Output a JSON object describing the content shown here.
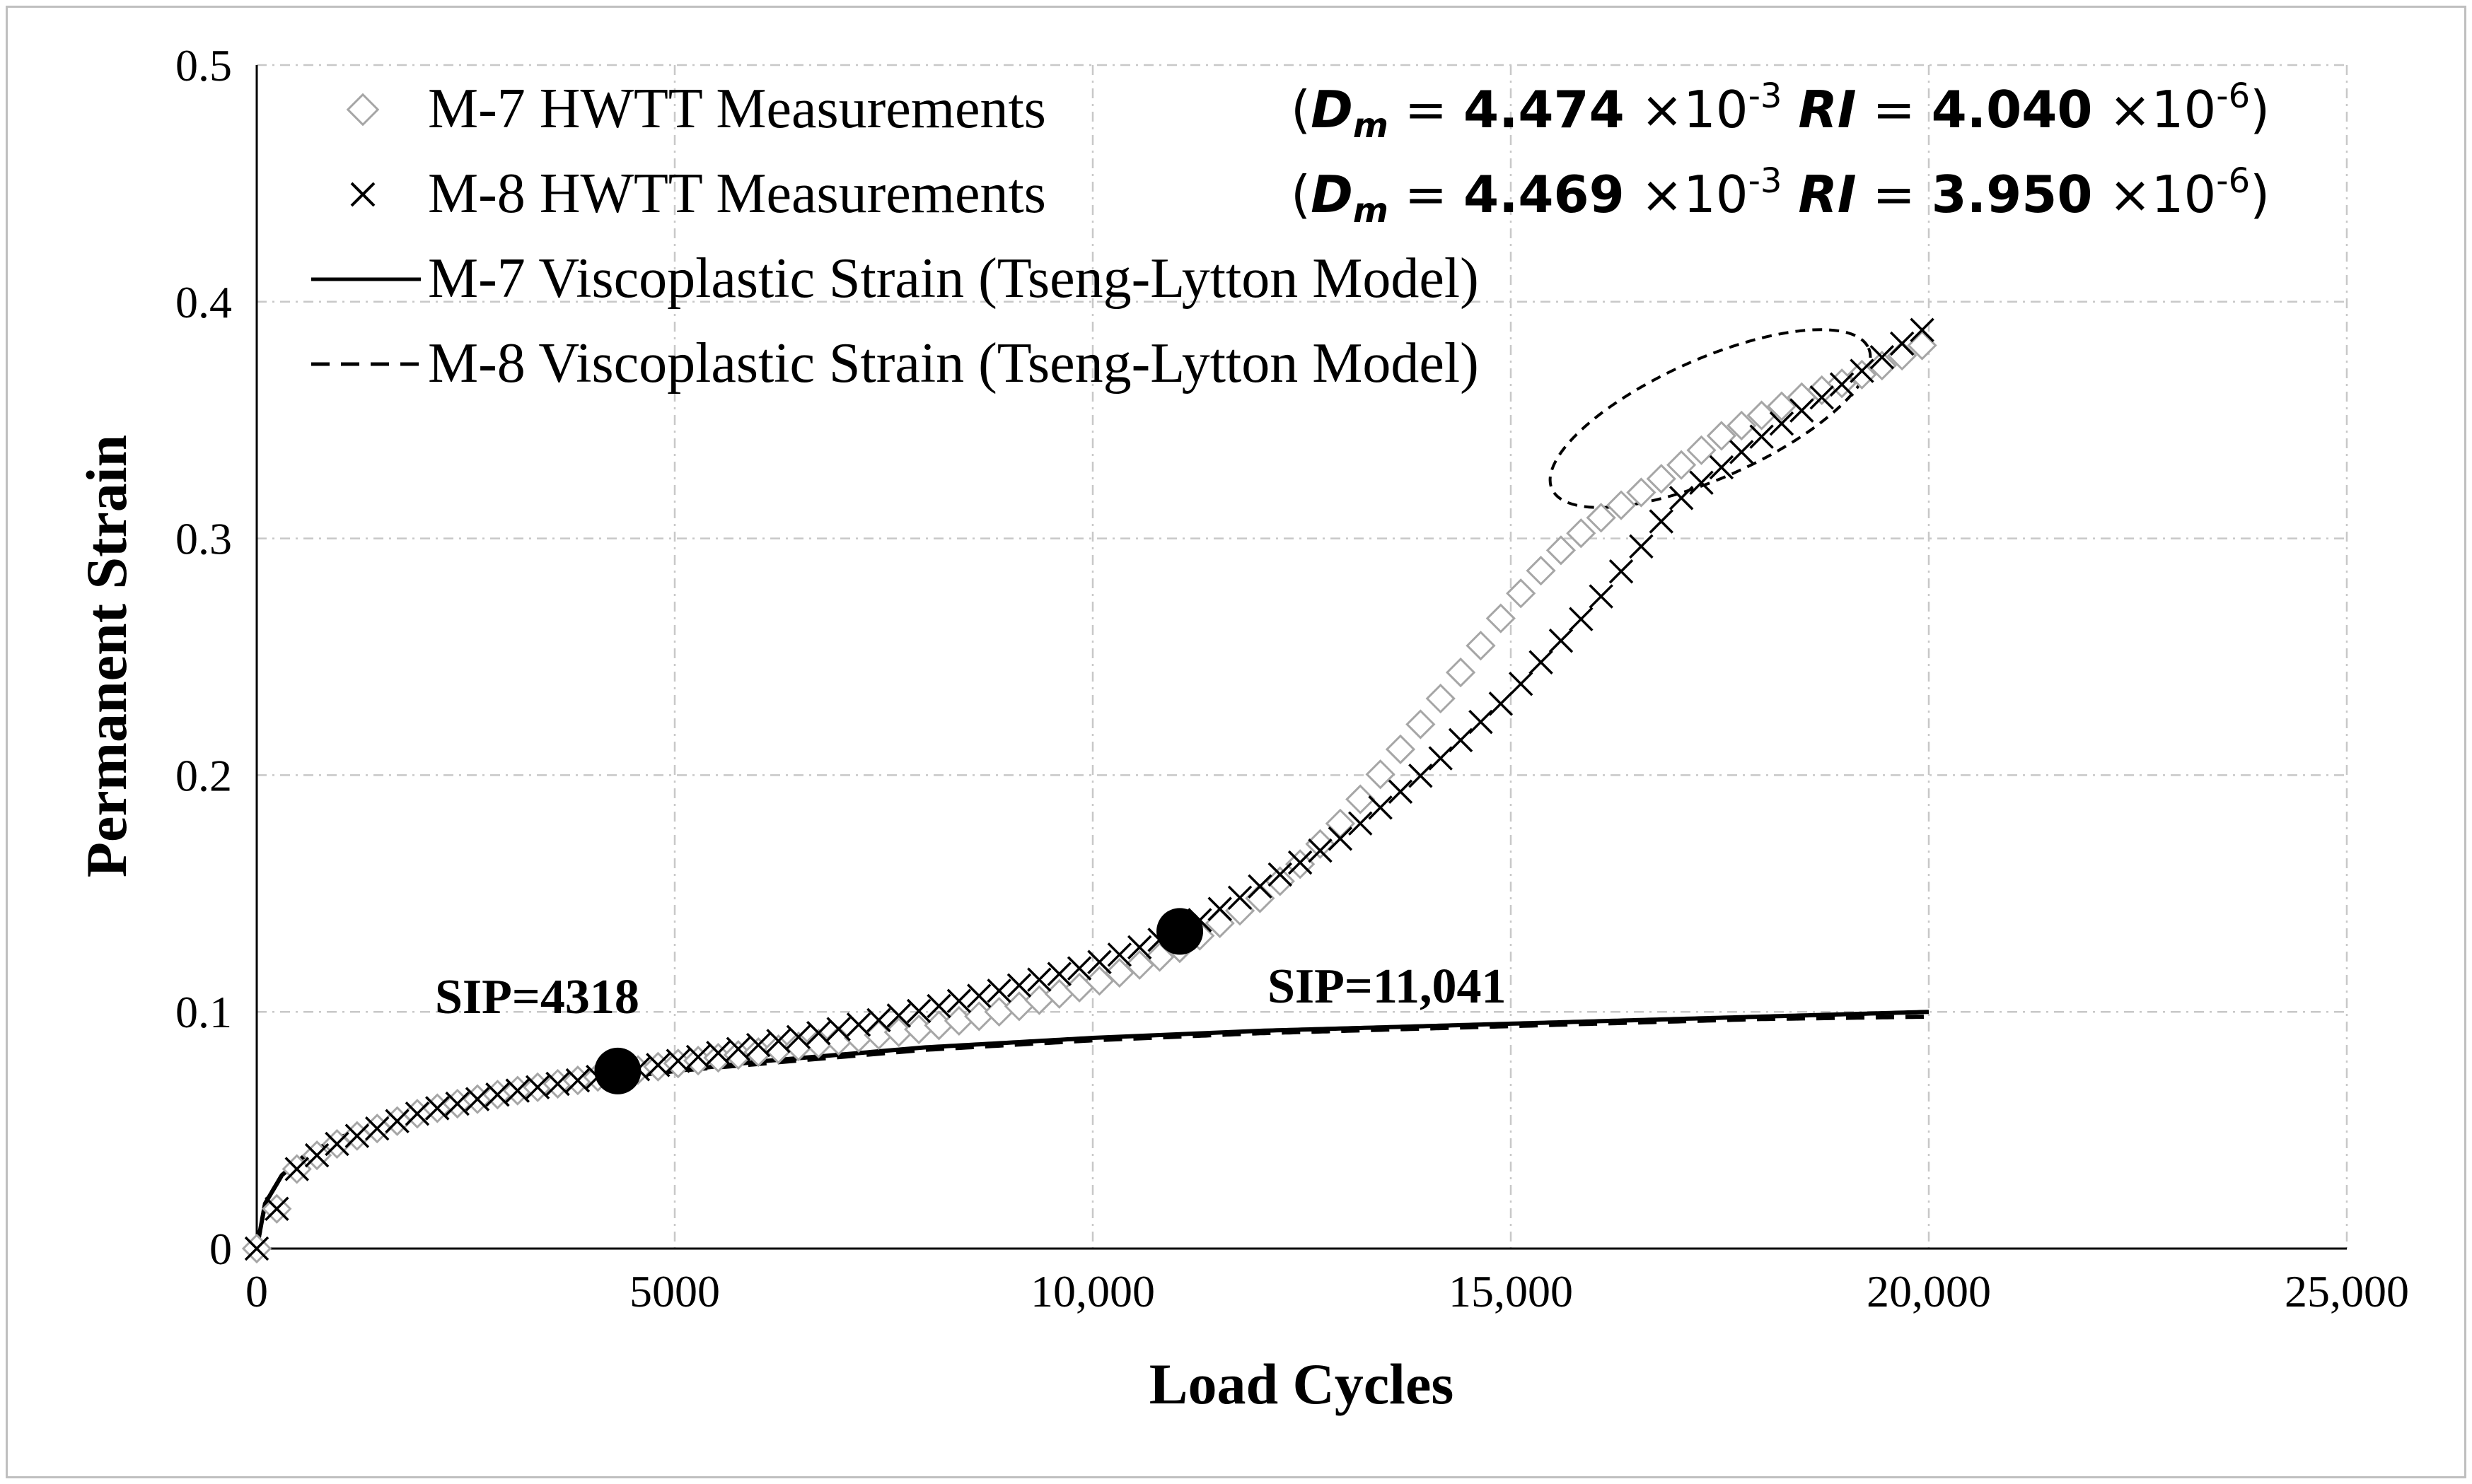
{
  "chart_data": {
    "type": "scatter",
    "title": "",
    "xlabel": "Load Cycles",
    "ylabel": "Permanent Strain",
    "xlim": [
      0,
      25000
    ],
    "ylim": [
      0,
      0.5
    ],
    "grid": true,
    "legend_position": "top-left",
    "x_ticks": [
      0,
      5000,
      10000,
      15000,
      20000,
      25000
    ],
    "x_tick_labels": [
      "0",
      "5000",
      "10,000",
      "15,000",
      "20,000",
      "25,000"
    ],
    "y_ticks": [
      0,
      0.1,
      0.2,
      0.3,
      0.4,
      0.5
    ],
    "y_tick_labels": [
      "0",
      "0.1",
      "0.2",
      "0.3",
      "0.4",
      "0.5"
    ],
    "series": [
      {
        "name": "M-7 HWTT Measurements",
        "marker": "diamond",
        "color": "#a6a6a6",
        "x": [
          0,
          500,
          1000,
          2000,
          3000,
          4000,
          4318,
          5000,
          6000,
          7000,
          8000,
          9000,
          10000,
          11000,
          12000,
          12500,
          13000,
          13500,
          14000,
          14500,
          15000,
          15500,
          16000,
          16500,
          17000,
          17500,
          18000,
          18500,
          19000,
          19500,
          20000
        ],
        "values": [
          0,
          0.035,
          0.045,
          0.058,
          0.066,
          0.072,
          0.074,
          0.078,
          0.083,
          0.088,
          0.093,
          0.101,
          0.112,
          0.126,
          0.148,
          0.163,
          0.181,
          0.203,
          0.225,
          0.248,
          0.272,
          0.292,
          0.307,
          0.318,
          0.33,
          0.343,
          0.352,
          0.36,
          0.366,
          0.374,
          0.383
        ]
      },
      {
        "name": "M-8 HWTT Measurements",
        "marker": "x",
        "color": "#000000",
        "x": [
          0,
          500,
          1000,
          2000,
          3000,
          4000,
          4318,
          5000,
          6000,
          7000,
          8000,
          9000,
          10000,
          11000,
          11041,
          12000,
          13000,
          14000,
          15000,
          16000,
          17000,
          18000,
          19000,
          20000
        ],
        "values": [
          0,
          0.035,
          0.045,
          0.058,
          0.066,
          0.072,
          0.074,
          0.079,
          0.086,
          0.093,
          0.101,
          0.11,
          0.12,
          0.133,
          0.134,
          0.153,
          0.174,
          0.202,
          0.234,
          0.272,
          0.316,
          0.343,
          0.366,
          0.39
        ]
      },
      {
        "name": "M-7 Viscoplastic Strain (Tseng-Lytton Model)",
        "line": "solid",
        "color": "#000000",
        "x": [
          0,
          100,
          300,
          600,
          1000,
          1500,
          2000,
          3000,
          4000,
          5000,
          6000,
          8000,
          10000,
          12000,
          14000,
          16000,
          18000,
          20000
        ],
        "values": [
          0,
          0.019,
          0.031,
          0.04,
          0.047,
          0.053,
          0.058,
          0.065,
          0.071,
          0.075,
          0.079,
          0.085,
          0.089,
          0.092,
          0.094,
          0.096,
          0.098,
          0.1
        ]
      },
      {
        "name": "M-8 Viscoplastic Strain (Tseng-Lytton Model)",
        "line": "dashed",
        "color": "#000000",
        "x": [
          0,
          100,
          300,
          600,
          1000,
          1500,
          2000,
          3000,
          4000,
          5000,
          6000,
          8000,
          10000,
          12000,
          14000,
          16000,
          18000,
          20000
        ],
        "values": [
          0,
          0.019,
          0.031,
          0.04,
          0.047,
          0.053,
          0.058,
          0.065,
          0.071,
          0.075,
          0.078,
          0.084,
          0.088,
          0.091,
          0.093,
          0.095,
          0.097,
          0.098
        ]
      }
    ],
    "sip_points": [
      {
        "label": "SIP=4318",
        "x": 4318,
        "y": 0.075
      },
      {
        "label": "SIP=11,041",
        "x": 11041,
        "y": 0.134
      }
    ],
    "parameters": [
      {
        "series": "M-7",
        "open": "(",
        "dm_sym": "D",
        "dm_sub": "m",
        "eq": "=",
        "dm_val": "4.474",
        "times": "×10",
        "dm_exp": "-3",
        "ri_sym": "RI",
        "ri_val": "4.040",
        "ri_exp": "-6",
        "close": ")"
      },
      {
        "series": "M-8",
        "open": "(",
        "dm_sym": "D",
        "dm_sub": "m",
        "eq": "=",
        "dm_val": "4.469",
        "times": "×10",
        "dm_exp": "-3",
        "ri_sym": "RI",
        "ri_val": "3.950",
        "ri_exp": "-6",
        "close": ")"
      }
    ]
  }
}
